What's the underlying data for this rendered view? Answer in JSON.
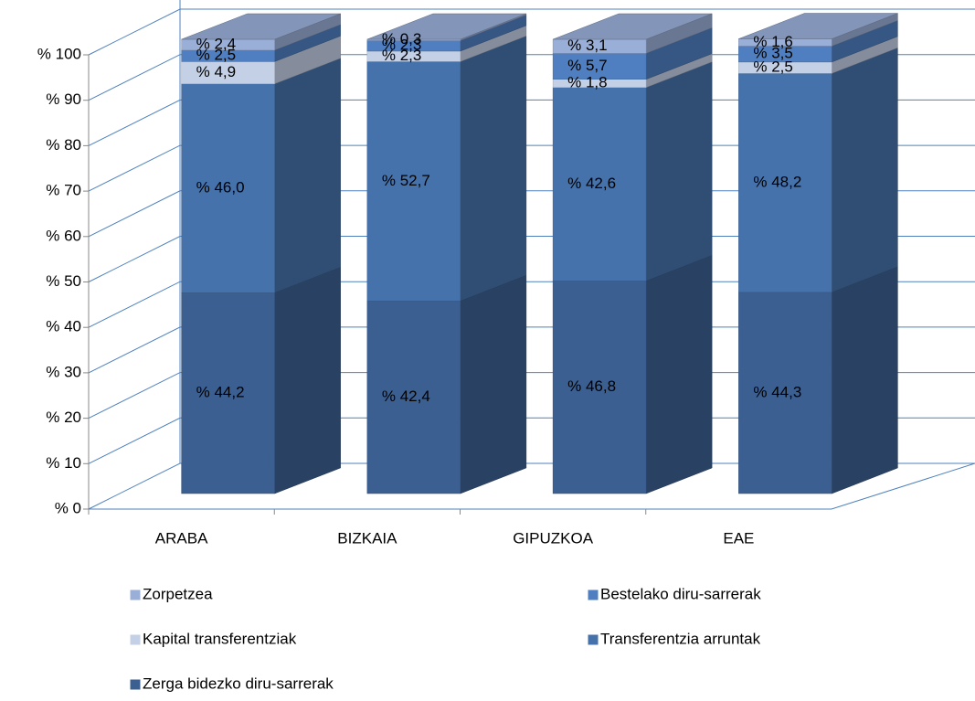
{
  "chart_data": {
    "type": "bar3d_stacked",
    "categories": [
      "ARABA",
      "BIZKAIA",
      "GIPUZKOA",
      "EAE"
    ],
    "series": [
      {
        "name": "Zerga bidezko diru-sarrerak",
        "color": "#3c5f91",
        "values": [
          44.2,
          42.4,
          46.8,
          44.3
        ],
        "value_labels": [
          "% 44,2",
          "% 42,4",
          "% 46,8",
          "% 44,3"
        ]
      },
      {
        "name": "Transferentzia arruntak",
        "color": "#4672ab",
        "values": [
          46.0,
          52.7,
          42.6,
          48.2
        ],
        "value_labels": [
          "% 46,0",
          "% 52,7",
          "% 42,6",
          "% 48,2"
        ]
      },
      {
        "name": "Kapital transferentziak",
        "color": "#c3d0e6",
        "values": [
          4.9,
          2.3,
          1.8,
          2.5
        ],
        "value_labels": [
          "% 4,9",
          "% 2,3",
          "% 1,8",
          "% 2,5"
        ]
      },
      {
        "name": "Bestelako diru-sarrerak",
        "color": "#4f7fc0",
        "values": [
          2.5,
          2.3,
          5.7,
          3.5
        ],
        "value_labels": [
          "% 2,5",
          "% 2,3",
          "% 5,7",
          "% 3,5"
        ]
      },
      {
        "name": "Zorpetzea",
        "color": "#9aafd8",
        "values": [
          2.4,
          0.3,
          3.1,
          1.6
        ],
        "value_labels": [
          "% 2,4",
          "% 0,3",
          "% 3,1",
          "% 1,6"
        ]
      }
    ],
    "ylim": [
      0,
      100
    ],
    "yticks": [
      {
        "value": 0,
        "label": "% 0"
      },
      {
        "value": 10,
        "label": "% 10"
      },
      {
        "value": 20,
        "label": "% 20"
      },
      {
        "value": 30,
        "label": "% 30"
      },
      {
        "value": 40,
        "label": "% 40"
      },
      {
        "value": 50,
        "label": "% 50"
      },
      {
        "value": 60,
        "label": "% 60"
      },
      {
        "value": 70,
        "label": "% 70"
      },
      {
        "value": 80,
        "label": "% 80"
      },
      {
        "value": 90,
        "label": "% 90"
      },
      {
        "value": 100,
        "label": "% 100"
      }
    ],
    "grid": true
  }
}
